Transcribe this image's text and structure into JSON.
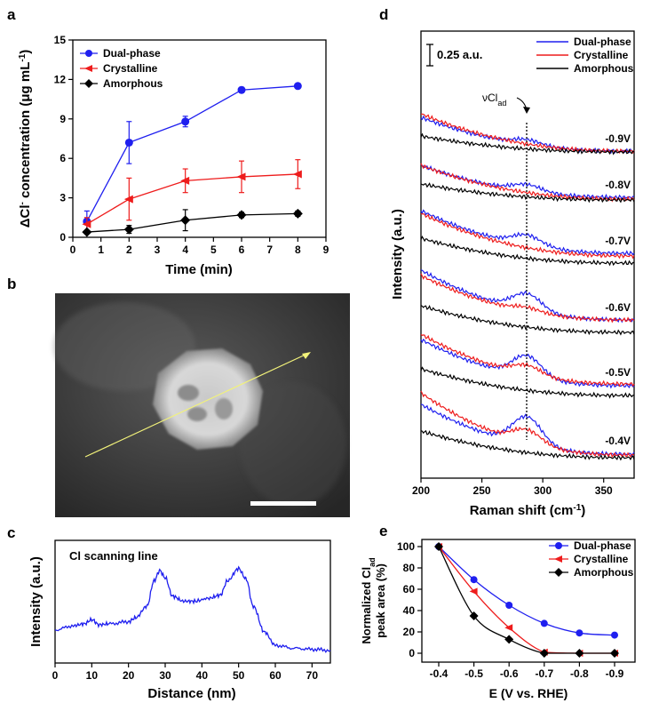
{
  "chart_data": [
    {
      "panel": "a",
      "type": "line",
      "xlabel": "Time (min)",
      "ylabel": "ΔCl⁻ concentration (μg mL⁻¹)",
      "ylabel_main": "ΔCl",
      "ylabel_sup": "-",
      "ylabel_rest": " concentration (μg mL",
      "ylabel_sup2": "-1",
      "ylabel_end": ")",
      "xlim": [
        0,
        9
      ],
      "ylim": [
        0,
        15
      ],
      "xticks": [
        "0",
        "1",
        "2",
        "3",
        "4",
        "5",
        "6",
        "7",
        "8",
        "9"
      ],
      "yticks": [
        "0",
        "3",
        "6",
        "9",
        "12",
        "15"
      ],
      "legend_position": "top-left",
      "series": [
        {
          "name": "Dual-phase",
          "color": "#1f1fef",
          "marker": "circle",
          "x": [
            0.5,
            2,
            4,
            6,
            8
          ],
          "y": [
            1.2,
            7.2,
            8.8,
            11.2,
            11.5
          ],
          "err": [
            0.8,
            1.6,
            0.4,
            0.2,
            0.1
          ]
        },
        {
          "name": "Crystalline",
          "color": "#ee1c1c",
          "marker": "triangle-left",
          "x": [
            0.5,
            2,
            4,
            6,
            8
          ],
          "y": [
            1.0,
            2.9,
            4.3,
            4.6,
            4.8
          ],
          "err": [
            0.5,
            1.6,
            0.9,
            1.2,
            1.1
          ]
        },
        {
          "name": "Amorphous",
          "color": "#000000",
          "marker": "diamond",
          "x": [
            0.5,
            2,
            4,
            6,
            8
          ],
          "y": [
            0.4,
            0.6,
            1.3,
            1.7,
            1.8
          ],
          "err": [
            0.1,
            0.3,
            0.8,
            0.2,
            0.2
          ]
        }
      ]
    },
    {
      "panel": "b",
      "type": "image",
      "description_scan_line": true
    },
    {
      "panel": "c",
      "type": "line",
      "title": "Cl scanning line",
      "xlabel": "Distance (nm)",
      "ylabel": "Intensity (a.u.)",
      "xlim": [
        0,
        75
      ],
      "xticks": [
        "0",
        "10",
        "20",
        "30",
        "40",
        "50",
        "60",
        "70"
      ],
      "series": [
        {
          "name": "Cl",
          "color": "#1f1fef",
          "x": [
            0,
            5,
            8,
            10,
            12,
            15,
            20,
            22,
            25,
            27,
            28.5,
            30,
            32,
            35,
            38,
            42,
            45,
            47,
            50,
            52,
            54,
            57,
            60,
            65,
            70,
            75
          ],
          "y": [
            0.22,
            0.26,
            0.28,
            0.32,
            0.27,
            0.28,
            0.3,
            0.34,
            0.45,
            0.7,
            0.8,
            0.73,
            0.55,
            0.5,
            0.5,
            0.53,
            0.56,
            0.7,
            0.82,
            0.72,
            0.45,
            0.2,
            0.07,
            0.04,
            0.03,
            0.02
          ]
        }
      ]
    },
    {
      "panel": "d",
      "type": "line",
      "xlabel": "Raman shift (cm⁻¹)",
      "xlabel_main": "Raman shift (cm",
      "xlabel_sup": "-1",
      "xlabel_end": ")",
      "ylabel": "Intensity (a.u.)",
      "xlim": [
        200,
        375
      ],
      "xticks": [
        "200",
        "250",
        "300",
        "350"
      ],
      "scale_bar": "0.25 a.u.",
      "annotation_main": "νCl",
      "annotation_sub": "ad",
      "peak_position": 287,
      "legend_position": "top-right",
      "legend": [
        {
          "name": "Dual-phase",
          "color": "#1f1fef"
        },
        {
          "name": "Crystalline",
          "color": "#ee1c1c"
        },
        {
          "name": "Amorphous",
          "color": "#000000"
        }
      ],
      "potentials": [
        "-0.9V",
        "-0.8V",
        "-0.7V",
        "-0.6V",
        "-0.5V",
        "-0.4V"
      ],
      "peak_height_au": {
        "Dual-phase": [
          0.06,
          0.08,
          0.12,
          0.2,
          0.25,
          0.33
        ],
        "Crystalline": [
          0.0,
          0.0,
          0.0,
          0.05,
          0.11,
          0.16
        ],
        "Amorphous": [
          0.0,
          0.0,
          0.0,
          0.0,
          0.0,
          0.0
        ]
      }
    },
    {
      "panel": "e",
      "type": "line",
      "xlabel": "E (V vs. RHE)",
      "ylabel": "Normalized Clad peak area (%)",
      "ylabel_main": "Normalized Cl",
      "ylabel_sub": "ad",
      "ylabel_line2": "peak area (%)",
      "categories": [
        "-0.4",
        "-0.5",
        "-0.6",
        "-0.7",
        "-0.8",
        "-0.9"
      ],
      "ylim": [
        0,
        100
      ],
      "yticks": [
        "0",
        "20",
        "40",
        "60",
        "80",
        "100"
      ],
      "legend_position": "top-right",
      "series": [
        {
          "name": "Dual-phase",
          "color": "#1f1fef",
          "marker": "circle",
          "values": [
            100,
            69,
            45,
            28,
            19,
            17
          ]
        },
        {
          "name": "Crystalline",
          "color": "#ee1c1c",
          "marker": "triangle-left",
          "values": [
            100,
            58,
            24,
            1,
            0,
            0
          ]
        },
        {
          "name": "Amorphous",
          "color": "#000000",
          "marker": "diamond",
          "values": [
            100,
            35,
            13,
            0,
            0,
            0
          ]
        }
      ]
    }
  ],
  "panel_labels": [
    "a",
    "b",
    "c",
    "d",
    "e"
  ]
}
